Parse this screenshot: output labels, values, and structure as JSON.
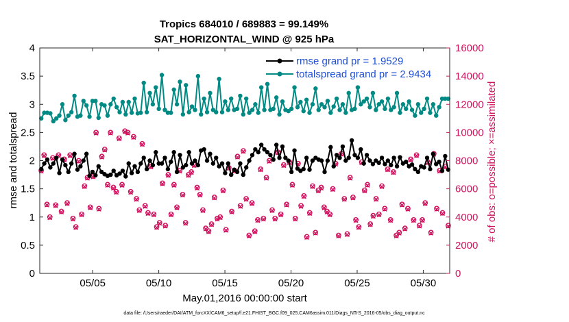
{
  "chart_data": {
    "type": "line",
    "title": "Tropics 684010 / 689883 = 99.149%",
    "subtitle": "SAT_HORIZONTAL_WIND @ 925 hPa",
    "xlabel": "May.01,2016 00:00:00 start",
    "ylabel_left": "rmse and totalspread",
    "ylabel_right": "# of obs: o=possible; ×=assimilated",
    "xlim": [
      1.0,
      32.0
    ],
    "ylim_left": [
      0,
      4
    ],
    "ylim_right": [
      0,
      16000
    ],
    "xticks": [
      5,
      10,
      15,
      20,
      25,
      30
    ],
    "xtick_labels": [
      "05/05",
      "05/10",
      "05/15",
      "05/20",
      "05/25",
      "05/30"
    ],
    "yticks_left": [
      0,
      0.5,
      1,
      1.5,
      2,
      2.5,
      3,
      3.5,
      4
    ],
    "ytick_labels_left": [
      "0",
      "0.5",
      "1",
      "1.5",
      "2",
      "2.5",
      "3",
      "3.5",
      "4"
    ],
    "yticks_right": [
      0,
      2000,
      4000,
      6000,
      8000,
      10000,
      12000,
      14000,
      16000
    ],
    "ytick_labels_right": [
      "0",
      "2000",
      "4000",
      "6000",
      "8000",
      "10000",
      "12000",
      "14000",
      "16000"
    ],
    "footer": "data file: /Users/raeder/DAI/ATM_forcXX/CAM6_setup/f.e21.FHIST_BGC.f09_025.CAM6assim.011/Diags_NTrS_2016-05/obs_diag_output.nc",
    "series": [
      {
        "name": "rmse grand pr = 1.9529",
        "color": "#000000",
        "marker": "circle",
        "axis": "left",
        "values": [
          1.85,
          1.95,
          2.02,
          1.88,
          1.95,
          2.05,
          1.78,
          2.02,
          1.92,
          1.8,
          1.95,
          2.12,
          1.84,
          1.9,
          2.0,
          2.12,
          1.73,
          1.8,
          1.74,
          1.9,
          1.8,
          1.76,
          1.73,
          1.75,
          1.82,
          1.74,
          1.77,
          1.82,
          1.72,
          1.95,
          1.78,
          1.9,
          1.8,
          1.95,
          2.05,
          1.85,
          2.0,
          1.92,
          2.15,
          1.95,
          1.95,
          2.05,
          1.85,
          1.98,
          2.15,
          1.8,
          2.1,
          1.88,
          1.92,
          2.15,
          1.95,
          2.0,
          1.92,
          2.18,
          2.2,
          2.0,
          2.12,
          1.95,
          2.05,
          1.9,
          1.95,
          1.78,
          1.95,
          1.75,
          1.84,
          1.8,
          1.95,
          1.75,
          1.88,
          2.0,
          2.1,
          2.2,
          2.15,
          2.28,
          2.2,
          2.15,
          2.1,
          2.02,
          2.28,
          2.05,
          2.25,
          2.05,
          2.0,
          1.8,
          2.18,
          1.86,
          1.82,
          1.85,
          2.05,
          1.84,
          2.0,
          2.05,
          2.02,
          2.0,
          1.8,
          2.0,
          2.24,
          1.9,
          2.1,
          2.05,
          2.25,
          2.0,
          2.05,
          2.36,
          2.1,
          2.05,
          2.2,
          1.95,
          2.1,
          2.0,
          1.94,
          2.0,
          1.96,
          2.05,
          1.94,
          2.0,
          1.92,
          2.05,
          1.9,
          2.06,
          1.95,
          1.98,
          1.9,
          1.93,
          1.85,
          1.8,
          1.9,
          1.88,
          2.05,
          1.85,
          2.12,
          1.94,
          1.98,
          1.82,
          2.08,
          1.84
        ]
      },
      {
        "name": "totalspread grand pr = 2.9434",
        "color": "#008a83",
        "marker": "circle",
        "axis": "left",
        "values": [
          2.75,
          2.85,
          2.85,
          2.84,
          2.7,
          2.75,
          2.8,
          3.0,
          2.72,
          2.8,
          2.86,
          3.15,
          2.78,
          2.8,
          3.06,
          2.98,
          2.78,
          3.06,
          3.06,
          2.76,
          3.0,
          2.98,
          2.8,
          3.0,
          3.1,
          2.95,
          2.86,
          3.04,
          2.82,
          3.04,
          2.85,
          3.1,
          2.84,
          2.85,
          3.38,
          2.86,
          3.2,
          3.0,
          3.3,
          2.92,
          3.52,
          2.9,
          2.85,
          2.85,
          3.26,
          3.0,
          3.4,
          2.82,
          3.34,
          2.86,
          2.96,
          2.9,
          3.5,
          2.82,
          3.1,
          2.86,
          3.2,
          2.9,
          2.86,
          3.45,
          2.86,
          3.05,
          2.9,
          3.1,
          2.9,
          2.92,
          3.15,
          2.82,
          3.1,
          2.85,
          2.9,
          3.0,
          2.85,
          3.3,
          2.9,
          3.36,
          2.9,
          2.92,
          3.12,
          2.82,
          3.05,
          2.9,
          2.88,
          2.92,
          3.3,
          2.95,
          3.04,
          2.88,
          3.08,
          2.85,
          3.0,
          3.28,
          2.9,
          3.0,
          2.95,
          3.06,
          2.85,
          2.96,
          3.1,
          2.9,
          3.0,
          2.85,
          3.2,
          2.9,
          2.92,
          3.3,
          3.0,
          3.05,
          3.1,
          2.95,
          3.2,
          2.9,
          3.0,
          3.05,
          2.92,
          3.1,
          2.9,
          2.95,
          3.2,
          2.85,
          3.0,
          2.92,
          3.05,
          2.9,
          2.8,
          3.0,
          2.85,
          2.92,
          3.1,
          2.85,
          3.0,
          2.8,
          2.95,
          3.1,
          3.1,
          3.1
        ]
      },
      {
        "name": "obs possible",
        "color": "#d0115e",
        "marker": "o",
        "axis": "right",
        "values": [
          7300,
          8400,
          4900,
          4000,
          8200,
          4850,
          8400,
          4400,
          8100,
          5000,
          8400,
          3900,
          3300,
          8000,
          4200,
          6200,
          6800,
          4700,
          6900,
          10000,
          4600,
          8300,
          8800,
          6300,
          10000,
          6100,
          5800,
          9600,
          6300,
          10100,
          10000,
          5800,
          9700,
          5300,
          4500,
          9200,
          4800,
          4300,
          7600,
          4200,
          3300,
          3600,
          6400,
          3400,
          7000,
          4200,
          6300,
          4700,
          7300,
          5600,
          3600,
          7000,
          7200,
          7700,
          6100,
          5600,
          4500,
          3200,
          3000,
          3500,
          5400,
          3900,
          4000,
          5900,
          3100,
          7500,
          4400,
          7300,
          8300,
          4800,
          8700,
          5300,
          2700,
          5000,
          3000,
          3800,
          7400,
          3900,
          6800,
          8000,
          4500,
          3900,
          8600,
          4200,
          7700,
          4900,
          7900,
          6300,
          3900,
          7800,
          4800,
          5500,
          2600,
          4300,
          6200,
          2900,
          5900,
          6100,
          4700,
          4400,
          4200,
          6000,
          7800,
          2700,
          8500,
          5300,
          2800,
          6800,
          5400,
          3800,
          3300,
          7900,
          5900,
          6300,
          3500,
          4100,
          5300,
          4200,
          6200,
          4600,
          7400,
          3800,
          7200,
          2700,
          2900,
          4900,
          3200,
          4600,
          8100,
          3800,
          8400,
          3400,
          3800,
          5000,
          7900,
          2900,
          8500,
          4600,
          7300,
          4300,
          7600,
          3400
        ]
      },
      {
        "name": "obs assimilated",
        "color": "#d0115e",
        "marker": "x",
        "axis": "right",
        "values": [
          7250,
          8350,
          4850,
          3950,
          8150,
          4800,
          8350,
          4350,
          8050,
          4950,
          8350,
          3850,
          3250,
          7950,
          4150,
          6150,
          6750,
          4650,
          6850,
          9950,
          4550,
          8250,
          8750,
          6250,
          9950,
          6050,
          5750,
          9550,
          6250,
          10050,
          9950,
          5750,
          9650,
          5250,
          4450,
          9150,
          4750,
          4250,
          7550,
          4150,
          3250,
          3550,
          6350,
          3350,
          6950,
          4150,
          6250,
          4650,
          7250,
          5550,
          3550,
          6950,
          7150,
          7650,
          6050,
          5550,
          4450,
          3150,
          2950,
          3450,
          5350,
          3850,
          3950,
          5850,
          3050,
          7450,
          4350,
          7250,
          8250,
          4750,
          8650,
          5250,
          2650,
          4950,
          2950,
          3750,
          7350,
          3850,
          6750,
          7950,
          4450,
          3850,
          8550,
          4150,
          7650,
          4850,
          7850,
          6250,
          3850,
          7750,
          4750,
          5450,
          2550,
          4250,
          6150,
          2850,
          5850,
          6050,
          4650,
          4350,
          4150,
          5950,
          7750,
          2650,
          8450,
          5250,
          2750,
          6750,
          5350,
          3750,
          3250,
          7850,
          5850,
          6250,
          3450,
          4050,
          5250,
          4150,
          6150,
          4550,
          7350,
          3750,
          7150,
          2650,
          2850,
          4850,
          3150,
          4550,
          8050,
          3750,
          8350,
          3350,
          3750,
          4950,
          7850,
          2850,
          8450,
          4550,
          7250,
          4250,
          7550,
          3350
        ]
      }
    ]
  }
}
